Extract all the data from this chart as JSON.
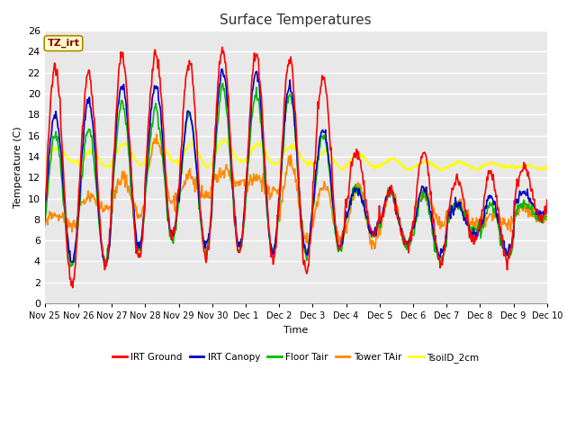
{
  "title": "Surface Temperatures",
  "ylabel": "Temperature (C)",
  "xlabel": "Time",
  "ylim": [
    0,
    26
  ],
  "plot_bg": "#e8e8e8",
  "fig_bg": "#ffffff",
  "grid_color": "#ffffff",
  "label_box_text": "TZ_irt",
  "label_box_bg": "#ffffcc",
  "label_box_fg": "#880000",
  "legend_entries": [
    "IRT Ground",
    "IRT Canopy",
    "Floor Tair",
    "Tower TAir",
    "TsoilD_2cm"
  ],
  "line_colors": [
    "#ff0000",
    "#0000cc",
    "#00bb00",
    "#ff8800",
    "#ffff00"
  ],
  "line_widths": [
    1.2,
    1.2,
    1.2,
    1.2,
    1.5
  ],
  "xtick_labels": [
    "Nov 25",
    "Nov 26",
    "Nov 27",
    "Nov 28",
    "Nov 29",
    "Nov 30",
    "Dec 1",
    "Dec 2",
    "Dec 3",
    "Dec 4",
    "Dec 5",
    "Dec 6",
    "Dec 7",
    "Dec 8",
    "Dec 9",
    "Dec 10"
  ],
  "ytick_values": [
    0,
    2,
    4,
    6,
    8,
    10,
    12,
    14,
    16,
    18,
    20,
    22,
    24,
    26
  ]
}
